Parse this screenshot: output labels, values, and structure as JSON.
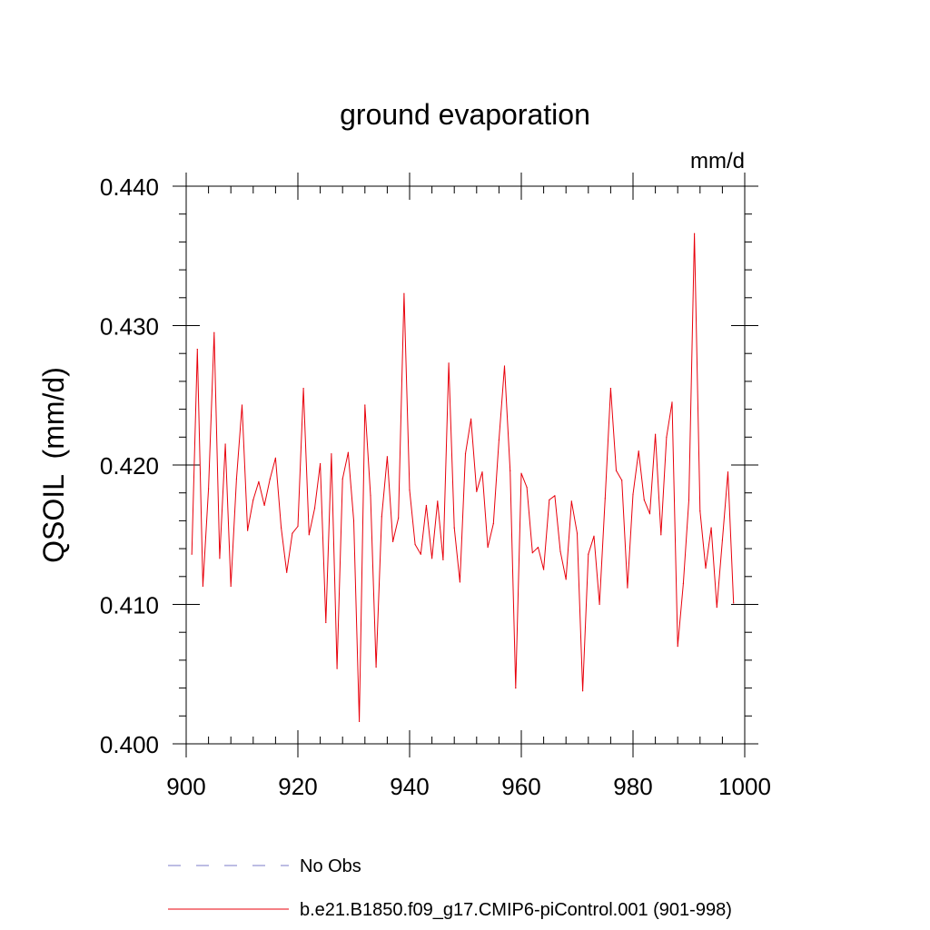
{
  "chart_data": {
    "type": "line",
    "title": "ground evaporation",
    "units_label": "mm/d",
    "ylabel": "QSOIL  (mm/d)",
    "xlabel": "",
    "xlim": [
      900,
      1000
    ],
    "ylim": [
      0.4,
      0.44
    ],
    "x_ticks": [
      900,
      920,
      940,
      960,
      980,
      1000
    ],
    "x_tick_labels": [
      "900",
      "920",
      "940",
      "960",
      "980",
      "1000"
    ],
    "y_ticks": [
      0.4,
      0.41,
      0.42,
      0.43,
      0.44
    ],
    "y_tick_labels": [
      "0.400",
      "0.410",
      "0.420",
      "0.430",
      "0.440"
    ],
    "grid": false,
    "legend_position": "bottom",
    "legend": [
      {
        "label": "No Obs",
        "color": "#7b7bc8",
        "style": "dashed"
      },
      {
        "label": "b.e21.B1850.f09_g17.CMIP6-piControl.001 (901-998)",
        "color": "#e8000b",
        "style": "solid"
      }
    ],
    "series": [
      {
        "name": "b.e21.B1850.f09_g17.CMIP6-piControl.001 (901-998)",
        "color": "#e8000b",
        "x": [
          901,
          902,
          903,
          904,
          905,
          906,
          907,
          908,
          909,
          910,
          911,
          912,
          913,
          914,
          915,
          916,
          917,
          918,
          919,
          920,
          921,
          922,
          923,
          924,
          925,
          926,
          927,
          928,
          929,
          930,
          931,
          932,
          933,
          934,
          935,
          936,
          937,
          938,
          939,
          940,
          941,
          942,
          943,
          944,
          945,
          946,
          947,
          948,
          949,
          950,
          951,
          952,
          953,
          954,
          955,
          956,
          957,
          958,
          959,
          960,
          961,
          962,
          963,
          964,
          965,
          966,
          967,
          968,
          969,
          970,
          971,
          972,
          973,
          974,
          975,
          976,
          977,
          978,
          979,
          980,
          981,
          982,
          983,
          984,
          985,
          986,
          987,
          988,
          989,
          990,
          991,
          992,
          993,
          994,
          995,
          996,
          997,
          998
        ],
        "values": [
          0.4136,
          0.4283,
          0.4113,
          0.4183,
          0.4295,
          0.4133,
          0.4215,
          0.4113,
          0.419,
          0.4243,
          0.4153,
          0.4175,
          0.4188,
          0.4171,
          0.419,
          0.4205,
          0.4155,
          0.4123,
          0.4151,
          0.4156,
          0.4255,
          0.415,
          0.4169,
          0.4201,
          0.4087,
          0.4208,
          0.4054,
          0.419,
          0.4209,
          0.416,
          0.4016,
          0.4243,
          0.4178,
          0.4055,
          0.4163,
          0.4206,
          0.4145,
          0.4162,
          0.4323,
          0.4182,
          0.4143,
          0.4136,
          0.4171,
          0.4133,
          0.4174,
          0.4132,
          0.4273,
          0.4155,
          0.4116,
          0.4208,
          0.4233,
          0.4181,
          0.4195,
          0.4141,
          0.4158,
          0.4218,
          0.4271,
          0.4196,
          0.404,
          0.4194,
          0.4184,
          0.4137,
          0.4141,
          0.4125,
          0.4175,
          0.4178,
          0.4138,
          0.4118,
          0.4174,
          0.4151,
          0.4038,
          0.4136,
          0.4149,
          0.41,
          0.4176,
          0.4255,
          0.4196,
          0.4189,
          0.4112,
          0.4179,
          0.421,
          0.4175,
          0.4165,
          0.4222,
          0.415,
          0.422,
          0.4245,
          0.407,
          0.4115,
          0.4175,
          0.4366,
          0.4167,
          0.4126,
          0.4155,
          0.4098,
          0.4146,
          0.4195,
          0.4101
        ]
      }
    ]
  }
}
